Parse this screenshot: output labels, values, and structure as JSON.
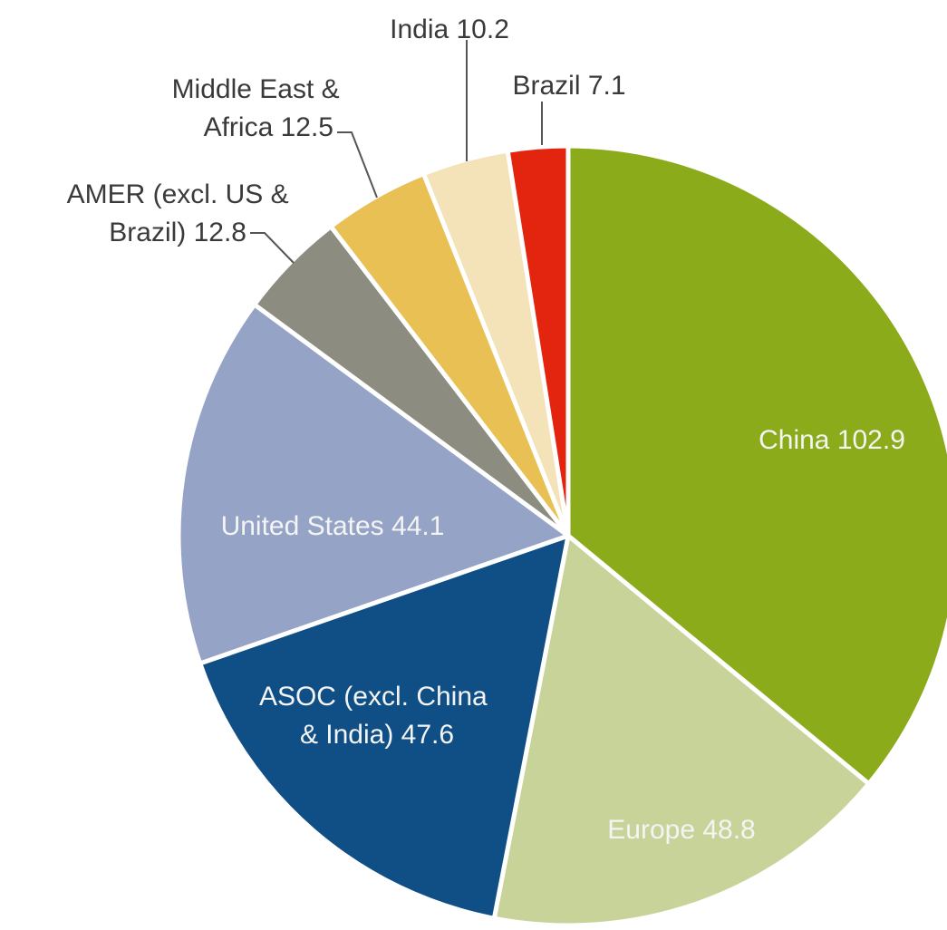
{
  "chart_data": {
    "type": "pie",
    "slices": [
      {
        "label": "China",
        "value": 102.9,
        "display": "China 102.9",
        "color": "#8bab1b"
      },
      {
        "label": "Europe",
        "value": 48.8,
        "display": "Europe 48.8",
        "color": "#c8d39a"
      },
      {
        "label": "ASOC (excl. China & India)",
        "value": 47.6,
        "display_lines": [
          "ASOC (excl. China",
          "& India) 47.6"
        ],
        "color": "#104f85"
      },
      {
        "label": "United States",
        "value": 44.1,
        "display": "United States 44.1",
        "color": "#94a3c6"
      },
      {
        "label": "AMER (excl. US & Brazil)",
        "value": 12.8,
        "display_lines": [
          "AMER (excl. US &",
          "Brazil) 12.8"
        ],
        "color": "#8c8c80"
      },
      {
        "label": "Middle East & Africa",
        "value": 12.5,
        "display_lines": [
          "Middle East &",
          "Africa 12.5"
        ],
        "color": "#e8c053"
      },
      {
        "label": "India",
        "value": 10.2,
        "display": "India 10.2",
        "color": "#f4e2b8"
      },
      {
        "label": "Brazil",
        "value": 7.1,
        "display": "Brazil 7.1",
        "color": "#e3240f"
      }
    ]
  }
}
